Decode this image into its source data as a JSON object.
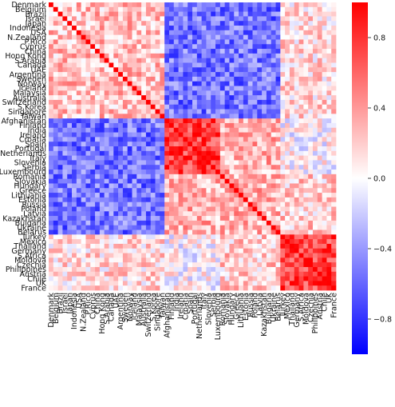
{
  "chart_data": {
    "type": "heatmap",
    "title": "",
    "xlabel": "",
    "ylabel": "",
    "labels": [
      "Denmark",
      "Belgium",
      "Brazil",
      "Israel",
      "Japan",
      "Indonesia",
      "USA",
      "N.Zealand",
      "P.Rico",
      "Cyprus",
      "China",
      "Hong Kong",
      "S.Arabia",
      "Canada",
      "UAE",
      "Argentina",
      "Sweden",
      "Norway",
      "Iceland",
      "Malaysia",
      "Australia",
      "Switzerland",
      "S.Korea",
      "Singapore",
      "Taiwan",
      "Afghanistan",
      "Finland",
      "India",
      "Ireland",
      "Croatia",
      "Spain",
      "Portugal",
      "Netherlands",
      "Italy",
      "Slovenia",
      "Serbia",
      "Luxembourg",
      "Romania",
      "Slovakia",
      "Hungary",
      "Greece",
      "Lithuania",
      "Estonia",
      "Russia",
      "Poland",
      "Latvia",
      "Kazakhstan",
      "Bulgaria",
      "Ukraine",
      "Belarus",
      "Turkey",
      "Mexico",
      "Thailand",
      "Germany",
      "S.Africa",
      "Moldova",
      "Czechia",
      "Philippines",
      "Austria",
      "Chile",
      "UK",
      "France"
    ],
    "x_tick_labels": [
      "Denmark",
      "Belgium",
      "Brazil",
      "Israel",
      "Japan",
      "Indonesia",
      "USA",
      "N.Zealand",
      "P.Rico",
      "Cyprus",
      "China",
      "Hong Kong",
      "S.Arabia",
      "Canada",
      "UAE",
      "Argentina",
      "Sweden",
      "Norway",
      "Iceland",
      "Malaysia",
      "Australia",
      "Switzerland",
      "S.Korea",
      "Singapore",
      "Taiwan",
      "Afghanistan",
      "Finland",
      "India",
      "Ireland",
      "Croatia",
      "Spain",
      "Portugal",
      "Netherlands",
      "Italy",
      "Slovenia",
      "Serbia",
      "Luxembourg",
      "Romania",
      "Slovakia",
      "Hungary",
      "Greece",
      "Lithuania",
      "Estonia",
      "Russia",
      "Poland",
      "Latvia",
      "Kazakhstan",
      "Bulgaria",
      "Ukraine",
      "Belarus",
      "Turkey",
      "Mexico",
      "Thailand",
      "Germany",
      "S.Africa",
      "Moldova",
      "Czechia",
      "Philippines",
      "Austria",
      "Chile",
      "UK",
      "France"
    ],
    "clusters": [
      {
        "start": 0,
        "end": 25
      },
      {
        "start": 25,
        "end": 37
      },
      {
        "start": 37,
        "end": 50
      },
      {
        "start": 50,
        "end": 62
      }
    ],
    "approx_correlation": {
      "cluster_same": [
        0.25,
        0.75,
        0.3,
        0.75
      ],
      "cluster_1_vs_2": -0.55,
      "cluster_1_vs_3": -0.55,
      "cluster_1_vs_4": 0.15,
      "cluster_2_vs_3": 0.3,
      "cluster_2_vs_4": 0.0,
      "cluster_3_vs_4": 0.2,
      "diagonal": 1.0
    },
    "colorbar": {
      "colormap": "bwr",
      "vmin": -1.0,
      "vmax": 1.0,
      "ticks": [
        0.8,
        0.4,
        0.0,
        -0.4,
        -0.8
      ],
      "tick_labels": [
        "0.8",
        "0.4",
        "0.0",
        "−0.4",
        "−0.8"
      ]
    },
    "colors": {
      "low": "#0000ff",
      "mid": "#ffffff",
      "high": "#ff0000"
    },
    "grid": false,
    "legend": "colorbar-right"
  }
}
